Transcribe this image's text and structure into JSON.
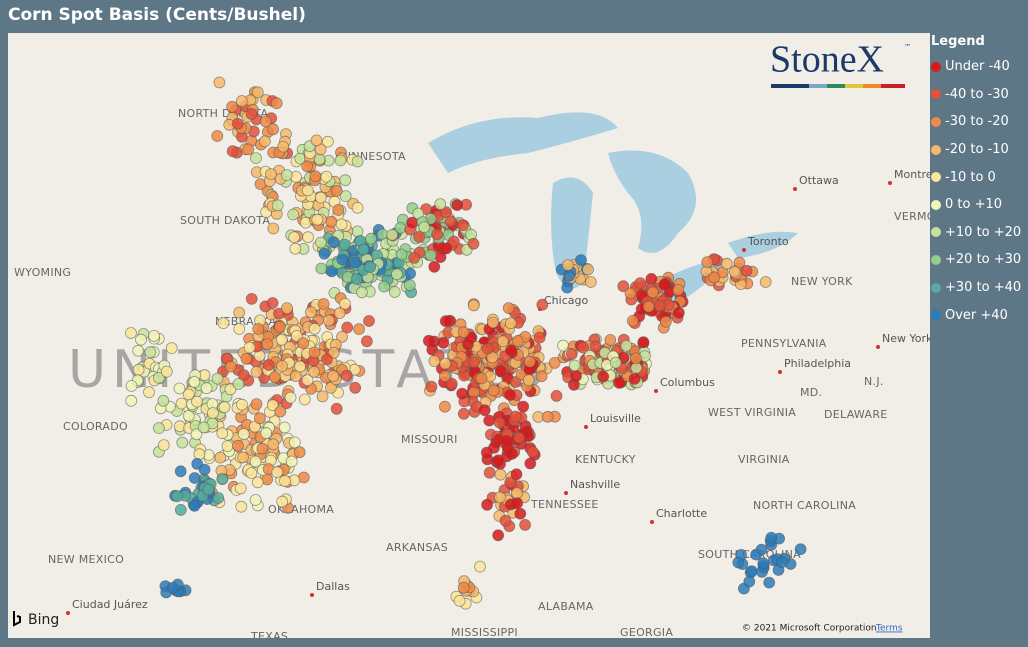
{
  "header": {
    "title": "Corn Spot Basis (Cents/Bushel)"
  },
  "logo": {
    "text": "StoneX",
    "mark": "™"
  },
  "legend": {
    "title": "Legend",
    "items": [
      {
        "label": "Under -40",
        "color": "#d7191c"
      },
      {
        "label": "-40 to -30",
        "color": "#e4503a"
      },
      {
        "label": "-30 to -20",
        "color": "#ef8a47"
      },
      {
        "label": "-20 to -10",
        "color": "#f6b86a"
      },
      {
        "label": "-10 to 0",
        "color": "#fbe59a"
      },
      {
        "label": "0 to +10",
        "color": "#f1f5b8"
      },
      {
        "label": "+10 to +20",
        "color": "#c6e39b"
      },
      {
        "label": "+20 to +30",
        "color": "#93ce8d"
      },
      {
        "label": "+30 to +40",
        "color": "#55ab9d"
      },
      {
        "label": "Over +40",
        "color": "#2b7bba"
      }
    ]
  },
  "map": {
    "big_label": "UNITED STATES",
    "labels": [
      "NORTH DAKOTA",
      "MINNESOTA",
      "SOUTH DAKOTA",
      "WYOMING",
      "NEBRASKA",
      "COLORADO",
      "MISSOURI",
      "KENTUCKY",
      "TENNESSEE",
      "OKLAHOMA",
      "ARKANSAS",
      "NEW MEXICO",
      "ALABAMA",
      "MISSISSIPPI",
      "TEXAS",
      "GEORGIA",
      "WEST VIRGINIA",
      "VIRGINIA",
      "NORTH CAROLINA",
      "SOUTH CAROLINA",
      "NEW YORK",
      "PENNSYLVANIA",
      "MD.",
      "DELAWARE",
      "N.J.",
      "VERMONT"
    ],
    "cities": [
      "Ottawa",
      "Montreal",
      "Toronto",
      "Chicago",
      "Columbus",
      "Louisville",
      "Nashville",
      "Charlotte",
      "Dallas",
      "Ciudad Juárez",
      "Philadelphia",
      "New York"
    ],
    "attribution": "© 2021 Microsoft Corporation",
    "terms": "Terms",
    "provider": "Bing"
  }
}
